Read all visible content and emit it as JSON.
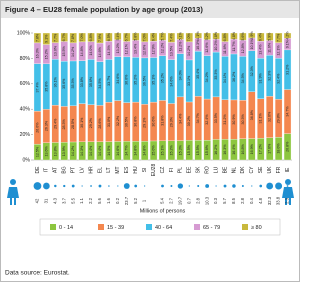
{
  "chart_data": {
    "type": "stacked_bar_percent",
    "title": "Figure 4 – EU28 female population by age group (2013)",
    "categories": [
      "DE",
      "IT",
      "AT",
      "BG",
      "PT",
      "LV",
      "HR",
      "EL",
      "LT",
      "MT",
      "ES",
      "HU",
      "SI",
      "EU28",
      "CZ",
      "FI",
      "PL",
      "EE",
      "SK",
      "RO",
      "LU",
      "BE",
      "NL",
      "DK",
      "CY",
      "SE",
      "UK",
      "FR",
      "IE"
    ],
    "ylim": [
      0,
      100
    ],
    "yticks": [
      {
        "value": 0,
        "label": "0%"
      },
      {
        "value": 20,
        "label": "20%"
      },
      {
        "value": 40,
        "label": "40%"
      },
      {
        "value": 60,
        "label": "60%"
      },
      {
        "value": 80,
        "label": "80%"
      },
      {
        "value": 100,
        "label": "100%"
      }
    ],
    "grid": false,
    "series": [
      {
        "name": "0 - 14",
        "color": "#8dc63f",
        "values": [
          12.5,
          13.6,
          13.8,
          13.9,
          14.2,
          14.3,
          14.4,
          14.4,
          14.5,
          14.6,
          14.7,
          14.8,
          14.8,
          15.0,
          15.1,
          15.2,
          15.3,
          15.5,
          15.5,
          15.6,
          16.2,
          16.3,
          16.4,
          16.8,
          16.9,
          17.2,
          17.6,
          18.0,
          20.8
        ],
        "value_labels": [
          "12.5%",
          "13.6%",
          "13.8%",
          "13.9%",
          "14.2%",
          "14.3%",
          "14.4%",
          "14.4%",
          "14.5%",
          "14.6%",
          "14.7%",
          "14.8%",
          "14.8%",
          "15.0%",
          "15.1%",
          "15.2%",
          "15.3%",
          "15.5%",
          "15.5%",
          "15.6%",
          "16.2%",
          "16.3%",
          "16.4%",
          "16.8%",
          "16.9%",
          "17.2%",
          "17.6%",
          "18.0%",
          "20.8%"
        ]
      },
      {
        "name": "15 - 39",
        "color": "#f4874f",
        "values": [
          26.0,
          26.3,
          29.4,
          28.3,
          28.5,
          30.1,
          29.2,
          28.6,
          31.0,
          32.2,
          30.5,
          30.8,
          29.1,
          30.6,
          31.8,
          29.3,
          34.4,
          30.2,
          34.7,
          32.4,
          33.5,
          31.2,
          30.9,
          30.3,
          36.8,
          31.1,
          32.6,
          29.8,
          34.7
        ],
        "value_labels": [
          "26.0%",
          "26.3%",
          "29.4%",
          "28.3%",
          "28.5%",
          "30.1%",
          "29.2%",
          "28.6%",
          "31.0%",
          "32.2%",
          "30.5%",
          "30.8%",
          "29.1%",
          "30.6%",
          "31.8%",
          "29.3%",
          "34.4%",
          "30.2%",
          "34.7%",
          "32.4%",
          "33.5%",
          "31.2%",
          "30.9%",
          "30.3%",
          "36.8%",
          "31.1%",
          "32.6%",
          "29.8%",
          "34.7%"
        ]
      },
      {
        "name": "40 - 64",
        "color": "#43bfe8",
        "values": [
          37.4,
          35.8,
          36.1,
          35.6,
          35.3,
          33.8,
          35.6,
          34.5,
          33.7,
          34.6,
          36.0,
          35.2,
          36.5,
          35.1,
          35.2,
          34.6,
          34.0,
          33.1,
          35.4,
          34.2,
          35.3,
          34.1,
          36.2,
          34.5,
          32.3,
          31.9,
          32.3,
          32.4,
          31.2
        ],
        "value_labels": [
          "37.4%",
          "35.8%",
          "36.1%",
          "35.6%",
          "35.3%",
          "33.8%",
          "35.6%",
          "34.5%",
          "33.7%",
          "34.6%",
          "36.0%",
          "35.2%",
          "36.5%",
          "35.1%",
          "35.2%",
          "34.6%",
          "34.0%",
          "33.1%",
          "35.4%",
          "34.2%",
          "35.3%",
          "34.1%",
          "36.2%",
          "34.5%",
          "32.3%",
          "31.9%",
          "32.3%",
          "32.4%",
          "31.2%"
        ]
      },
      {
        "name": "65 - 79",
        "color": "#d69bd2",
        "values": [
          16.3,
          15.2,
          13.0,
          15.5,
          14.2,
          14.8,
          14.0,
          14.6,
          14.3,
          13.2,
          12.1,
          13.4,
          12.6,
          12.9,
          12.2,
          13.5,
          11.2,
          14.2,
          10.3,
          12.6,
          10.2,
          11.6,
          11.7,
          12.8,
          10.1,
          13.4,
          11.6,
          12.1,
          9.1
        ],
        "value_labels": [
          "16.3%",
          "15.2%",
          "13.0%",
          "15.5%",
          "14.2%",
          "14.8%",
          "14.0%",
          "14.6%",
          "14.3%",
          "13.2%",
          "12.1%",
          "13.4%",
          "12.6%",
          "12.9%",
          "12.2%",
          "13.5%",
          "11.2%",
          "14.2%",
          "10.3%",
          "12.6%",
          "10.2%",
          "11.6%",
          "11.7%",
          "12.8%",
          "10.1%",
          "13.4%",
          "11.6%",
          "12.1%",
          "9.1%"
        ]
      },
      {
        "name": "≥ 80",
        "color": "#c9b93c",
        "values": [
          7.8,
          9.1,
          7.7,
          6.7,
          7.8,
          7.0,
          6.8,
          7.9,
          6.5,
          5.4,
          6.7,
          5.8,
          7.0,
          6.4,
          5.7,
          7.4,
          5.1,
          7.0,
          4.1,
          5.2,
          4.8,
          6.8,
          4.8,
          5.6,
          3.9,
          6.4,
          5.9,
          7.7,
          4.2
        ],
        "value_labels": [
          "7.8%",
          "9.1%",
          "7.7%",
          "6.7%",
          "7.8%",
          "7.0%",
          "6.8%",
          "7.9%",
          "6.5%",
          "5.4%",
          "6.7%",
          "5.8%",
          "7.0%",
          "6.4%",
          "5.7%",
          "7.4%",
          "5.1%",
          "7.0%",
          "4.1%",
          "5.2%",
          "4.8%",
          "6.8%",
          "4.8%",
          "5.6%",
          "3.9%",
          "6.4%",
          "5.9%",
          "7.7%",
          "4.2%"
        ]
      }
    ],
    "population": {
      "label": "Millions of persons",
      "color": "#1f8fd1",
      "values": [
        42.0,
        31.0,
        4.3,
        3.7,
        5.5,
        1.1,
        2.2,
        5.6,
        1.6,
        0.2,
        23.7,
        5.2,
        1.0,
        null,
        5.4,
        2.7,
        19.7,
        0.7,
        2.8,
        10.3,
        0.3,
        5.7,
        8.5,
        2.8,
        0.4,
        4.8,
        32.3,
        33.8,
        2.3
      ]
    },
    "source": "Data source: Eurostat."
  }
}
